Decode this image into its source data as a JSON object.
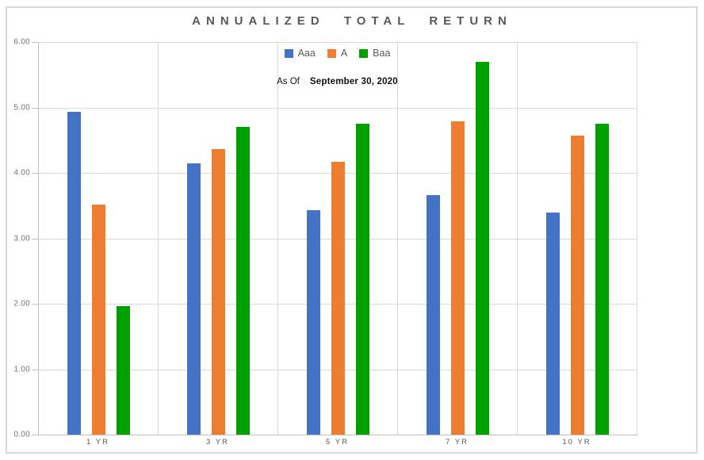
{
  "page": {
    "background": "#ffffff",
    "frame_border_color": "#d9d9d9"
  },
  "title": "ANNUALIZED TOTAL RETURN",
  "subtitle": {
    "as_of_label": "As Of",
    "as_of_date": "September 30, 2020"
  },
  "chart_data": {
    "type": "bar",
    "title": "ANNUALIZED TOTAL RETURN",
    "categories": [
      "1 YR",
      "3 YR",
      "5 YR",
      "7 YR",
      "10 YR"
    ],
    "series": [
      {
        "name": "Aaa",
        "color": "#4472C4",
        "values": [
          4.93,
          4.15,
          3.43,
          3.66,
          3.39
        ]
      },
      {
        "name": "A",
        "color": "#ED7D31",
        "values": [
          3.51,
          4.36,
          4.17,
          4.79,
          4.57
        ]
      },
      {
        "name": "Baa",
        "color": "#00A000",
        "values": [
          1.96,
          4.7,
          4.75,
          5.7,
          4.75
        ]
      }
    ],
    "xlabel": "",
    "ylabel": "",
    "ylim": [
      0,
      6
    ],
    "yticks": [
      "0.00",
      "1.00",
      "2.00",
      "3.00",
      "4.00",
      "5.00",
      "6.00"
    ],
    "grid": true,
    "legend_position": "top-center",
    "annotation": "As Of September 30, 2020",
    "gridline_color": "#d9d9d9",
    "axis_color": "#bfbfbf",
    "tick_label_color": "#737373"
  }
}
